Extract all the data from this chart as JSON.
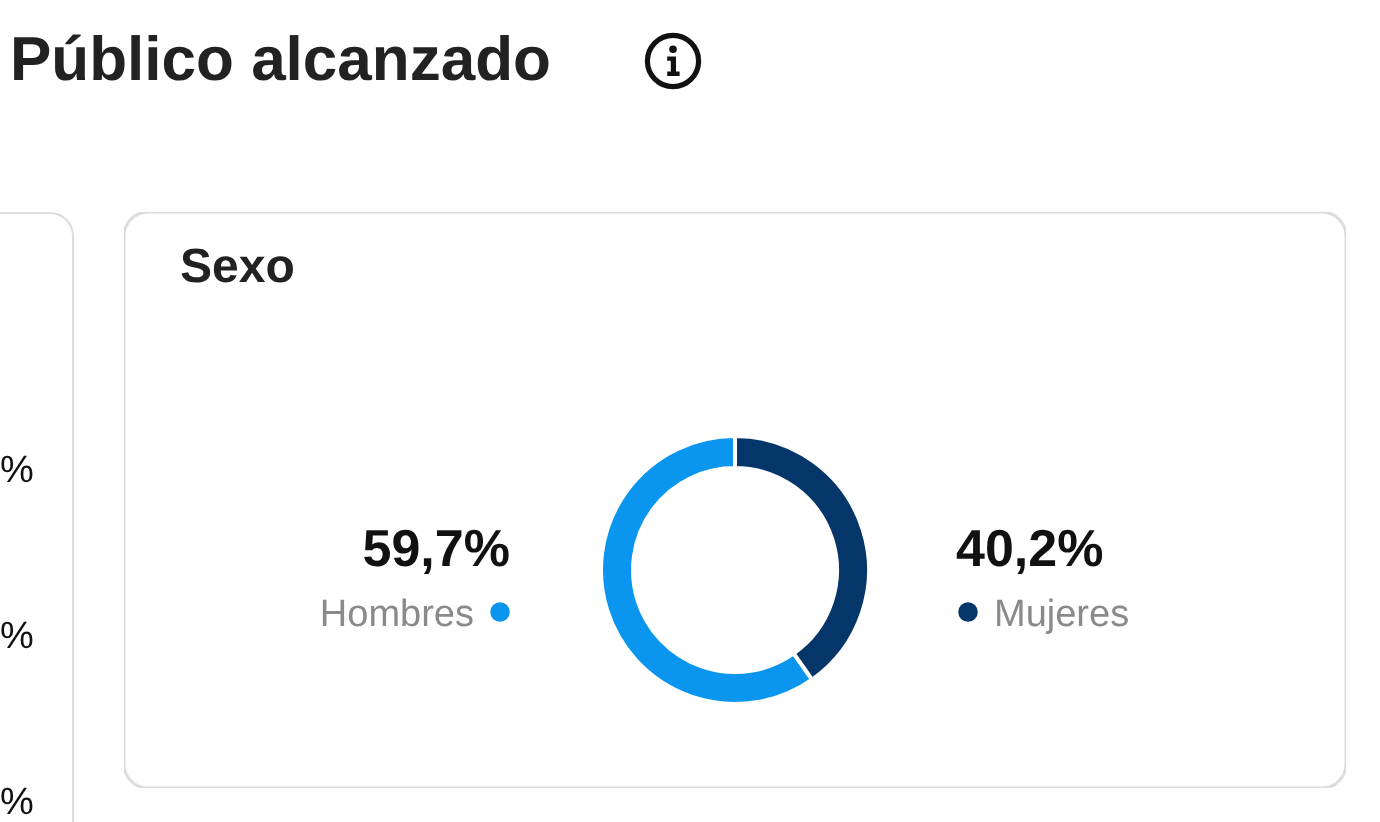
{
  "chart_data": [
    {
      "type": "other",
      "title": "Público alcanzado",
      "annotations": [
        "%",
        "%",
        "%"
      ]
    },
    {
      "type": "donut",
      "title": "Sexo",
      "categories": [
        "Hombres",
        "Mujeres"
      ],
      "values": [
        59.7,
        40.2
      ],
      "colors": [
        "#0a95ee",
        "#04366a"
      ],
      "value_labels": [
        "59,7%",
        "40,2%"
      ]
    }
  ]
}
